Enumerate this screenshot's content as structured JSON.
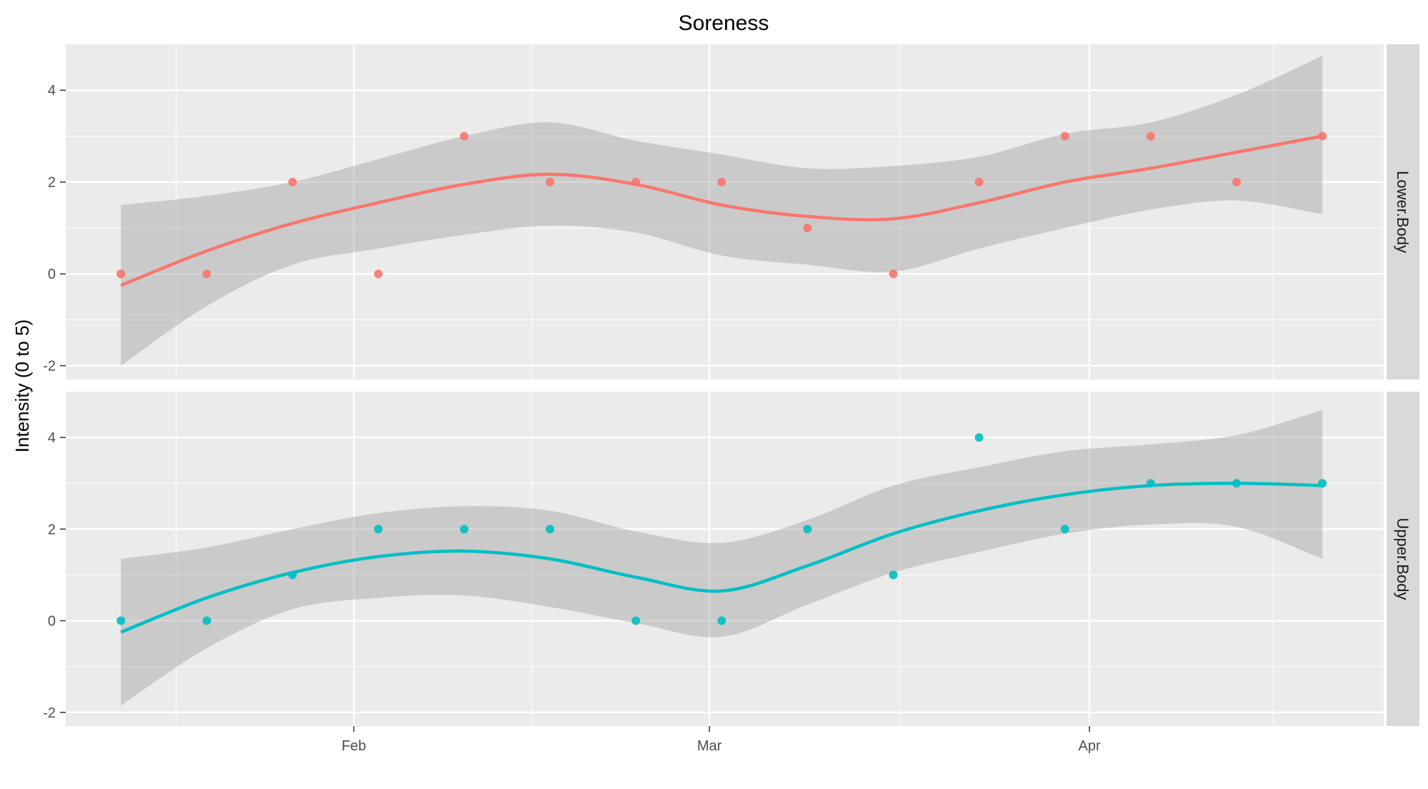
{
  "chart_data": {
    "type": "scatter",
    "title": "Soreness",
    "xlabel": "",
    "ylabel": "Intensity (0 to 5)",
    "x_ticks": [
      "Feb",
      "Mar",
      "Apr"
    ],
    "y_ticks": [
      "-2",
      "0",
      "2",
      "4"
    ],
    "ylim": [
      -2.3,
      5
    ],
    "grid": true,
    "smoother": "loess with confidence band",
    "dates": [
      "Jan 15",
      "Jan 22",
      "Jan 29",
      "Feb 5",
      "Feb 12",
      "Feb 19",
      "Feb 26",
      "Mar 5",
      "Mar 12",
      "Mar 19",
      "Mar 26",
      "Apr 2",
      "Apr 9",
      "Apr 16",
      "Apr 23"
    ],
    "panels": [
      {
        "name": "Lower.Body",
        "color": "#F8766D",
        "points": [
          0,
          0,
          2,
          0,
          3,
          2,
          2,
          2,
          1,
          0,
          2,
          3,
          3,
          2,
          3
        ],
        "fit": [
          -0.25,
          0.5,
          1.1,
          1.55,
          1.95,
          2.17,
          1.95,
          1.5,
          1.25,
          1.2,
          1.55,
          2.0,
          2.3,
          2.65,
          3.0
        ],
        "lower": [
          -2.0,
          -0.7,
          0.2,
          0.55,
          0.85,
          1.05,
          0.9,
          0.4,
          0.2,
          0.05,
          0.55,
          1.0,
          1.4,
          1.6,
          1.3
        ],
        "upper": [
          1.5,
          1.7,
          2.0,
          2.5,
          3.0,
          3.3,
          2.9,
          2.6,
          2.3,
          2.35,
          2.55,
          3.05,
          3.3,
          3.9,
          4.75
        ]
      },
      {
        "name": "Upper.Body",
        "color": "#00BFC4",
        "points": [
          0,
          0,
          1,
          2,
          2,
          2,
          0,
          0,
          2,
          1,
          4,
          2,
          3,
          3,
          3
        ],
        "fit": [
          -0.25,
          0.5,
          1.05,
          1.4,
          1.52,
          1.35,
          0.95,
          0.65,
          1.2,
          1.9,
          2.4,
          2.75,
          2.95,
          3.0,
          2.95
        ],
        "lower": [
          -1.85,
          -0.6,
          0.25,
          0.5,
          0.55,
          0.3,
          -0.05,
          -0.35,
          0.35,
          1.05,
          1.5,
          1.9,
          2.1,
          2.05,
          1.35
        ],
        "upper": [
          1.35,
          1.6,
          2.0,
          2.35,
          2.5,
          2.4,
          1.95,
          1.7,
          2.2,
          2.95,
          3.35,
          3.7,
          3.85,
          4.05,
          4.6
        ]
      }
    ]
  }
}
